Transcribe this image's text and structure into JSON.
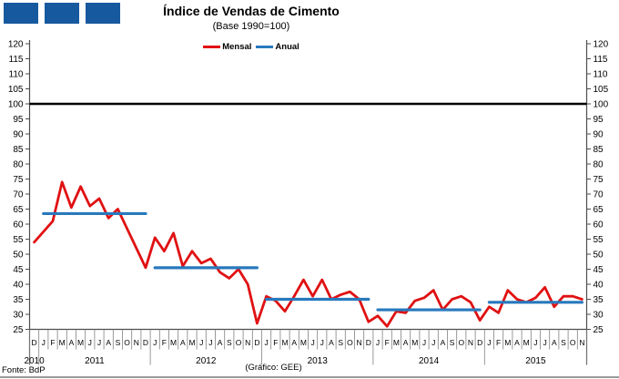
{
  "header": {
    "logo_color": "#17599F",
    "title": "Índice de Vendas de Cimento",
    "subtitle": "(Base 1990=100)"
  },
  "legend": [
    {
      "label": "Mensal",
      "color": "#E01112"
    },
    {
      "label": "Anual",
      "color": "#2879BD"
    }
  ],
  "footer": {
    "source": "Fonte: BdP",
    "credit": "(Gráfico: GEE)"
  },
  "chart_data": {
    "type": "line",
    "title": "Índice de Vendas de Cimento",
    "subtitle": "(Base 1990=100)",
    "y_axis": {
      "min": 25,
      "max": 120,
      "step": 5
    },
    "reference_line": 100,
    "grid": false,
    "legend_position": "top-center",
    "months": [
      "D",
      "J",
      "F",
      "M",
      "A",
      "M",
      "J",
      "J",
      "A",
      "S",
      "O",
      "N",
      "D",
      "J",
      "F",
      "M",
      "A",
      "M",
      "J",
      "J",
      "A",
      "S",
      "O",
      "N",
      "D",
      "J",
      "F",
      "M",
      "A",
      "M",
      "J",
      "J",
      "A",
      "S",
      "O",
      "N",
      "D",
      "J",
      "F",
      "M",
      "A",
      "M",
      "J",
      "J",
      "A",
      "S",
      "O",
      "N",
      "D",
      "J",
      "F",
      "M",
      "A",
      "M",
      "J",
      "J",
      "A",
      "S",
      "O",
      "N"
    ],
    "years": [
      {
        "label": "2010",
        "start": 0,
        "end": 1
      },
      {
        "label": "2011",
        "start": 1,
        "end": 13
      },
      {
        "label": "2012",
        "start": 13,
        "end": 25
      },
      {
        "label": "2013",
        "start": 25,
        "end": 37
      },
      {
        "label": "2014",
        "start": 37,
        "end": 49
      },
      {
        "label": "2015",
        "start": 49,
        "end": 60
      }
    ],
    "series": [
      {
        "name": "Mensal",
        "type": "line",
        "color": "#E01112",
        "start_period": "Dez 2010",
        "end_period": "Nov 2015",
        "values": [
          54,
          57.5,
          61,
          74,
          65.5,
          72.5,
          66,
          68.5,
          62,
          65,
          58.5,
          52,
          45.5,
          55.5,
          51,
          57,
          46,
          51,
          47,
          48.5,
          44,
          42,
          45,
          40,
          27,
          36,
          34.5,
          31,
          36,
          41.5,
          36,
          41.5,
          35,
          36.5,
          37.5,
          35,
          27.5,
          29.5,
          26,
          31,
          30.5,
          34.5,
          35.5,
          38,
          31.5,
          35,
          36,
          34,
          28,
          32.5,
          30.5,
          38,
          35,
          34,
          35.5,
          39,
          32.5,
          36,
          36,
          35
        ]
      },
      {
        "name": "Anual",
        "type": "horizontal-segments",
        "color": "#2879BD",
        "segments": [
          {
            "year": "2011",
            "value": 63.5,
            "from": 1,
            "to": 12
          },
          {
            "year": "2012",
            "value": 45.5,
            "from": 13,
            "to": 24
          },
          {
            "year": "2013",
            "value": 35,
            "from": 25,
            "to": 36
          },
          {
            "year": "2014",
            "value": 31.5,
            "from": 37,
            "to": 48
          },
          {
            "year": "2015",
            "value": 34,
            "from": 49,
            "to": 59
          }
        ]
      }
    ]
  }
}
